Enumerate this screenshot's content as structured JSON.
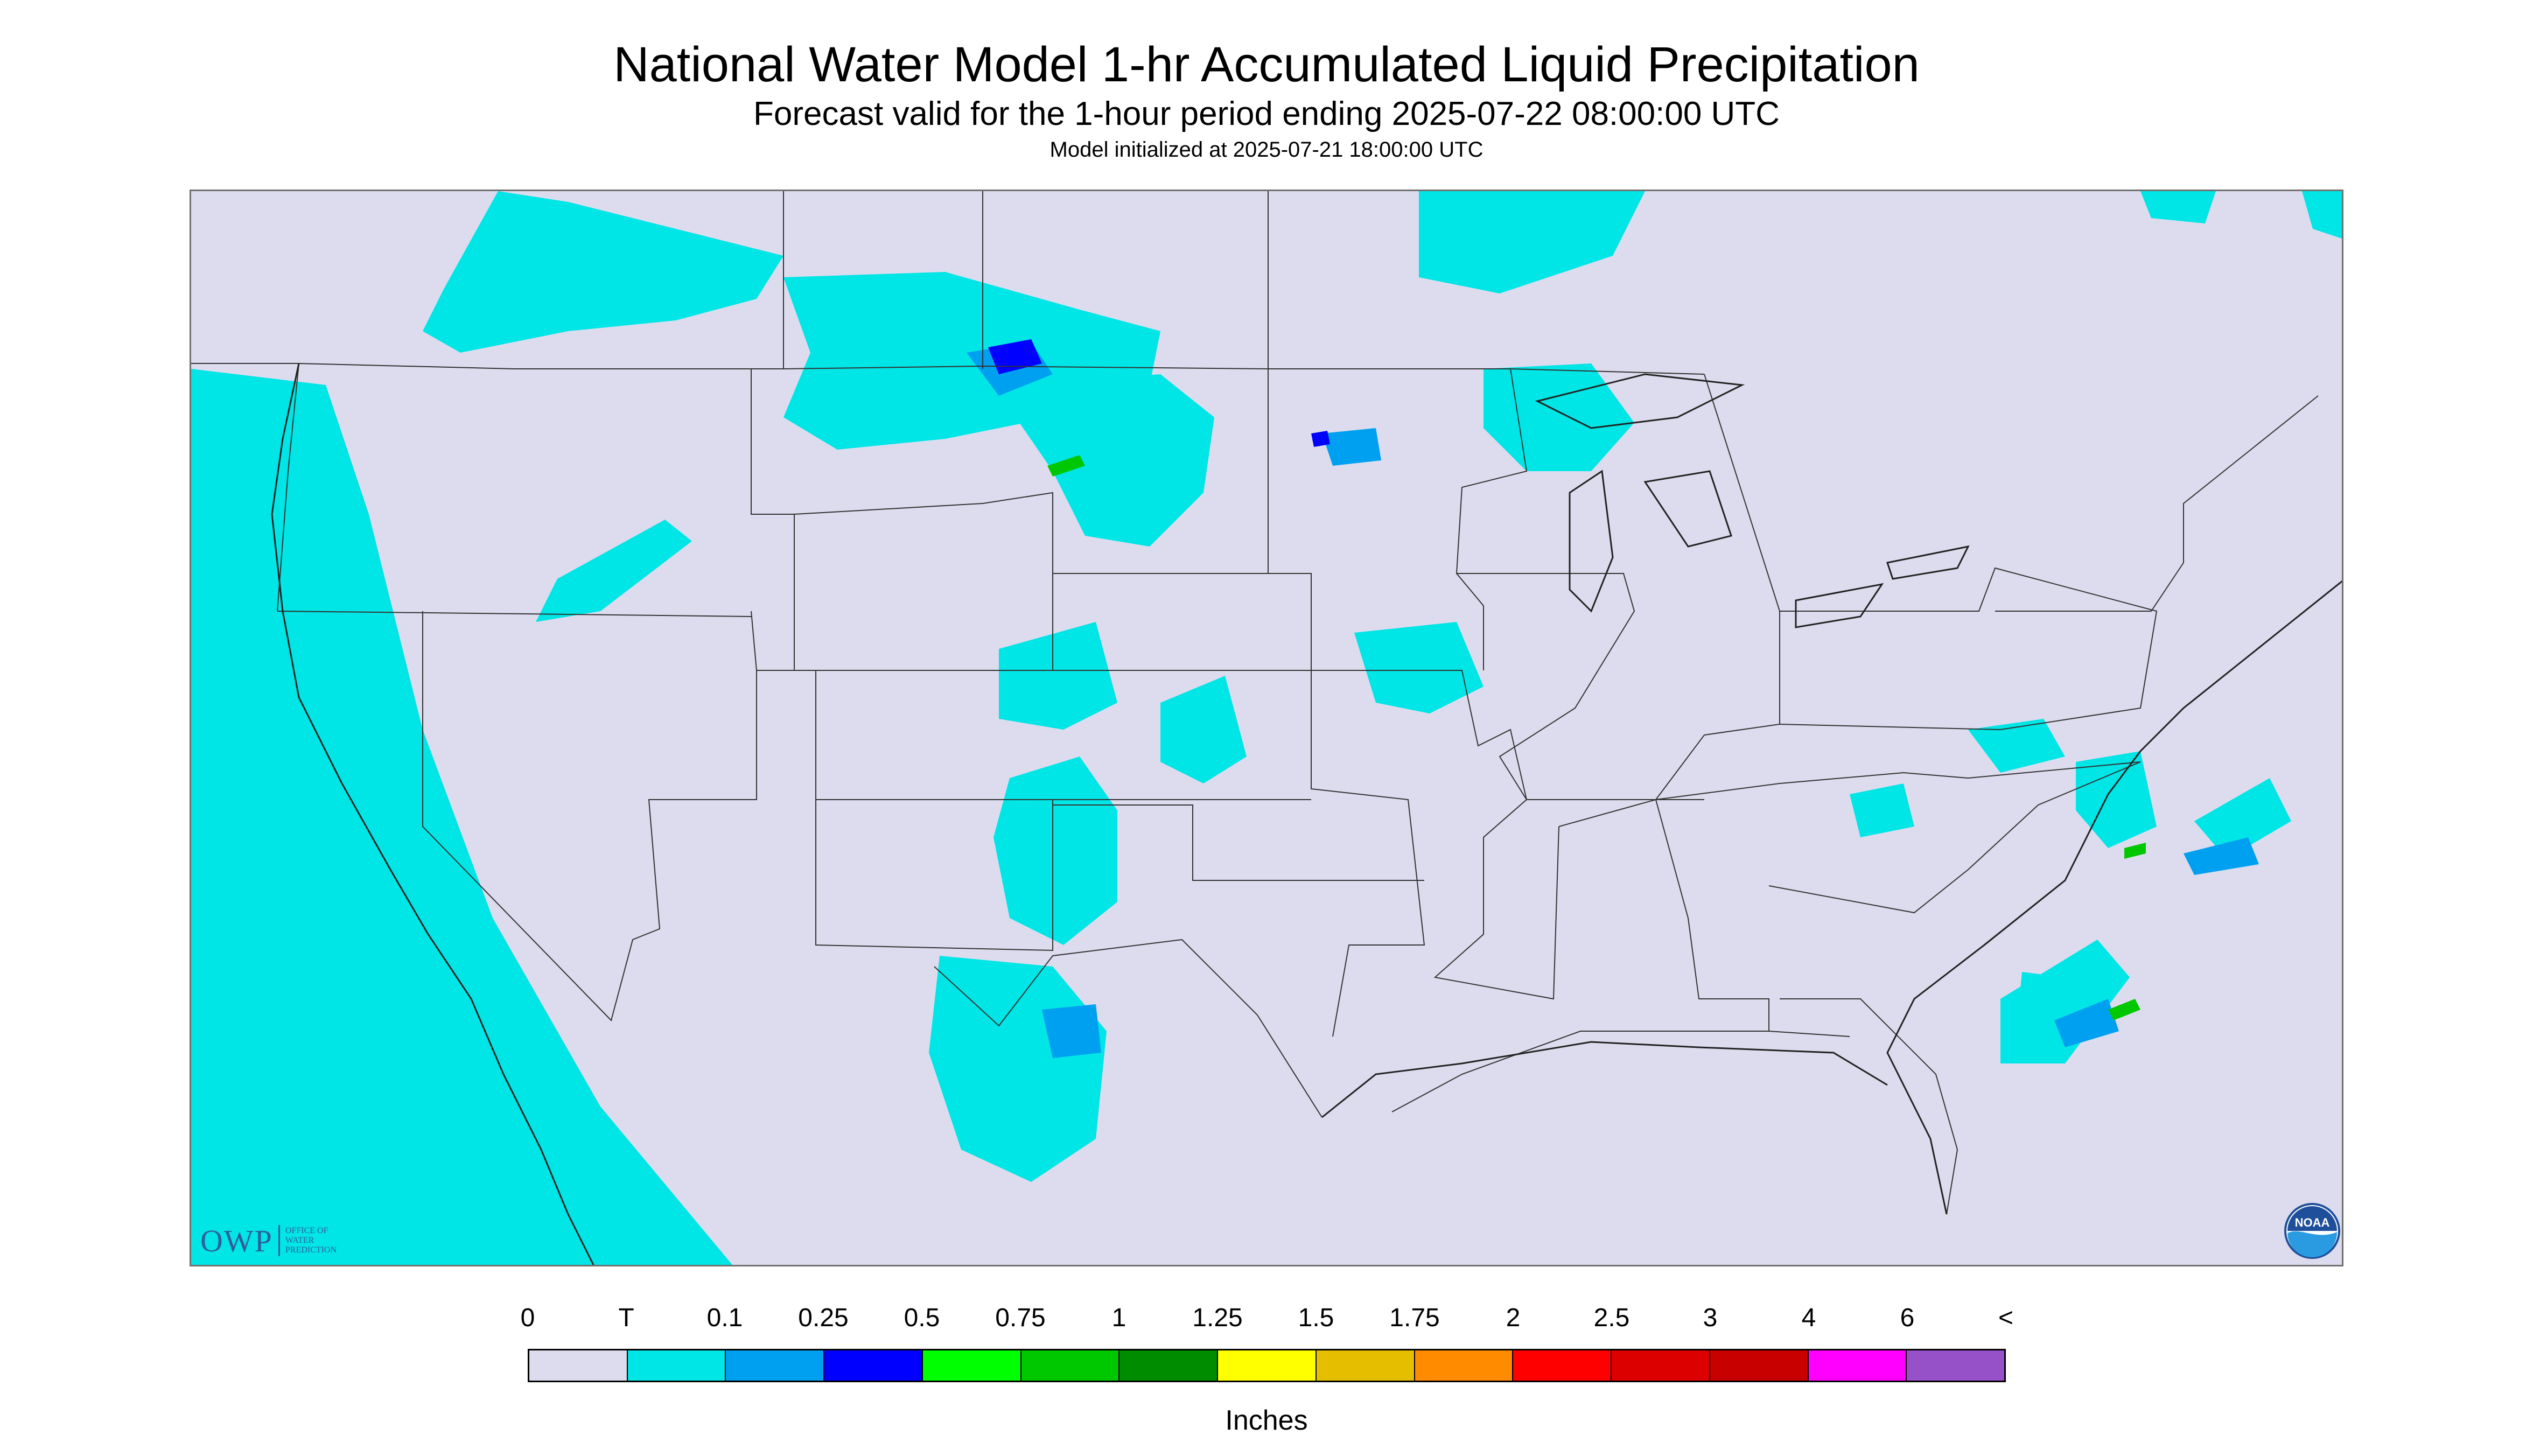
{
  "header": {
    "title": "National Water Model 1-hr Accumulated Liquid Precipitation",
    "subtitle": "Forecast valid for the 1-hour period ending 2025-07-22 08:00:00 UTC",
    "init": "Model initialized at 2025-07-21 18:00:00 UTC"
  },
  "logos": {
    "owp_big": "OWP",
    "owp_small": [
      "OFFICE OF",
      "WATER",
      "PREDICTION"
    ],
    "noaa": "NOAA"
  },
  "legend": {
    "labels": [
      "0",
      "T",
      "0.1",
      "0.25",
      "0.5",
      "0.75",
      "1",
      "1.25",
      "1.5",
      "1.75",
      "2",
      "2.5",
      "3",
      "4",
      "6",
      "<"
    ],
    "colors": [
      "#dcdcee",
      "#00e5e5",
      "#00a0f0",
      "#0000ff",
      "#00ff00",
      "#00c800",
      "#008c00",
      "#ffff00",
      "#e6be00",
      "#ff8c00",
      "#ff0000",
      "#dc0000",
      "#c80000",
      "#ff00ff",
      "#9650c8"
    ],
    "units": "Inches"
  },
  "map_colors": {
    "background": "#dcdcee",
    "trace": "#00e5e5",
    "light": "#00a0f0",
    "moderate": "#0000ff",
    "heavy": "#00c800",
    "borders": "#333333"
  }
}
